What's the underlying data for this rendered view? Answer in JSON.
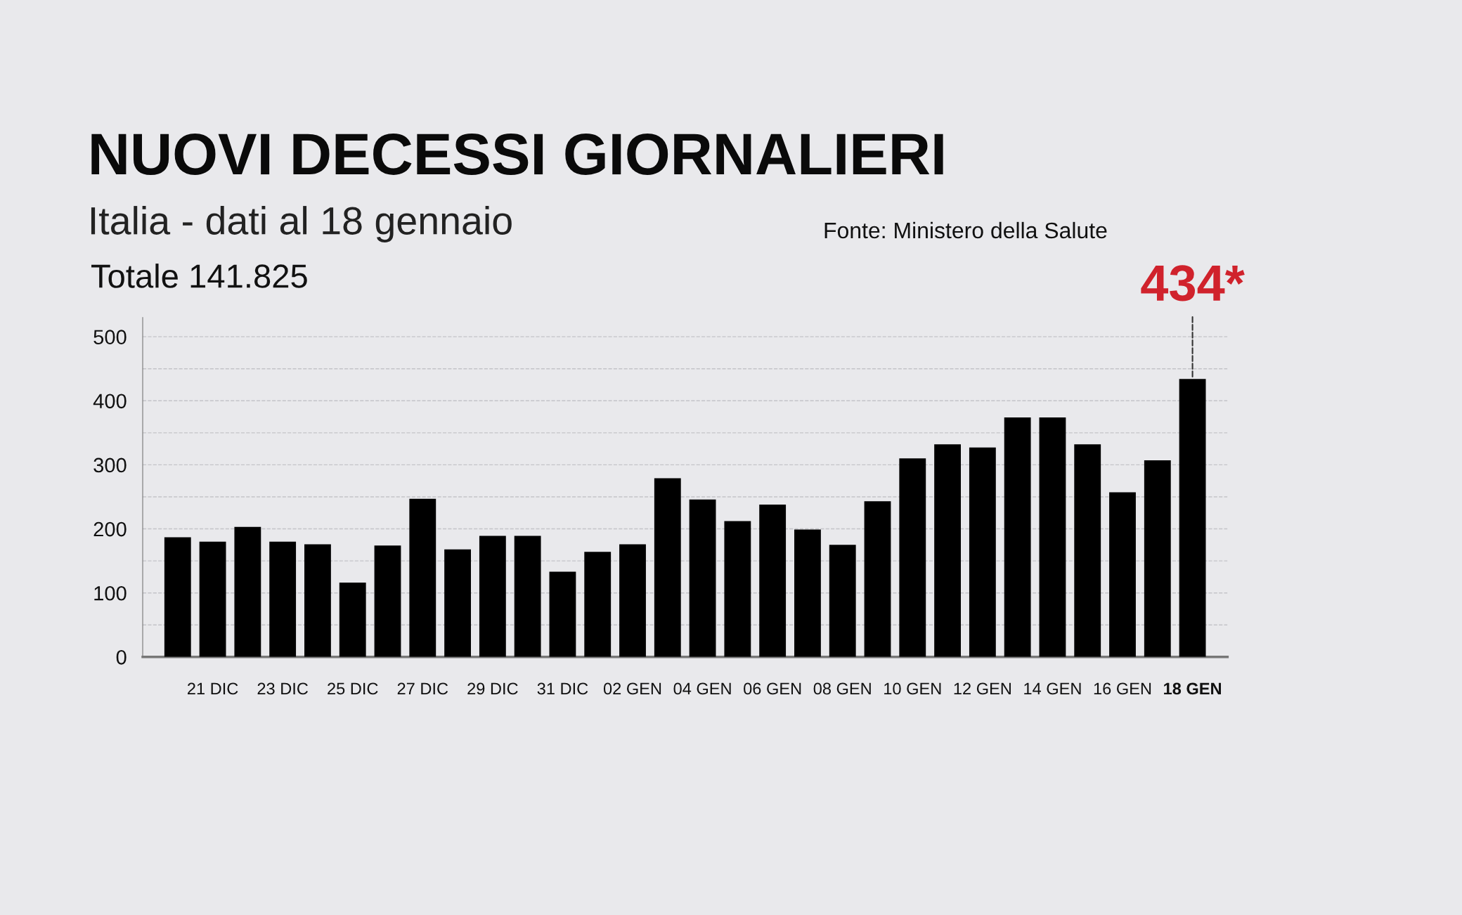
{
  "chart_data": {
    "type": "bar",
    "title": "NUOVI DECESSI GIORNALIERI",
    "subtitle": "Italia - dati al 18 gennaio",
    "annotations": [
      "Totale 141.825",
      "Fonte: Ministero della Salute"
    ],
    "categories": [
      null,
      "21 DIC",
      null,
      "23 DIC",
      null,
      "25 DIC",
      null,
      "27 DIC",
      null,
      "29 DIC",
      null,
      "31 DIC",
      null,
      "02 GEN",
      null,
      "04 GEN",
      null,
      "06 GEN",
      null,
      "08 GEN",
      null,
      "10 GEN",
      null,
      "12 GEN",
      null,
      "14 GEN",
      null,
      "16 GEN",
      null,
      "18 GEN"
    ],
    "values": [
      187,
      180,
      203,
      180,
      176,
      116,
      174,
      247,
      168,
      189,
      189,
      133,
      164,
      176,
      279,
      246,
      212,
      238,
      199,
      175,
      243,
      310,
      332,
      327,
      374,
      374,
      332,
      257,
      307,
      434
    ],
    "value_labels": [
      null,
      null,
      null,
      null,
      null,
      null,
      null,
      null,
      null,
      null,
      null,
      null,
      null,
      null,
      null,
      null,
      null,
      null,
      null,
      null,
      null,
      null,
      null,
      null,
      null,
      null,
      null,
      null,
      null,
      "434*"
    ],
    "color": "#000000",
    "ylim": [
      0,
      530
    ],
    "yticks": [
      0,
      {
        "value": 50,
        "label": null
      },
      100,
      {
        "value": 150,
        "label": null
      },
      200,
      {
        "value": 250,
        "label": null
      },
      300,
      {
        "value": 350,
        "label": null
      },
      400,
      {
        "value": 450,
        "label": null
      },
      500
    ],
    "grid": "y",
    "line_style": "dashed",
    "legend": false
  }
}
